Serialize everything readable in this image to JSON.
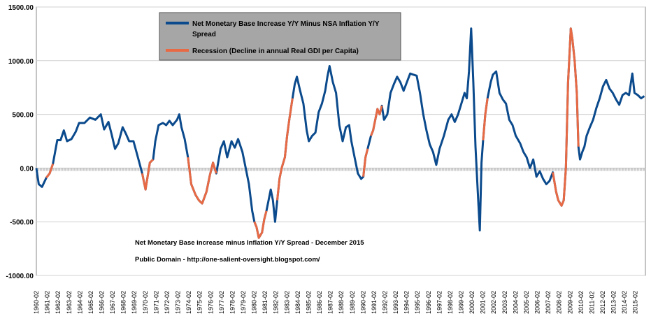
{
  "chart_data": {
    "type": "line",
    "ylim": [
      -1000,
      1500
    ],
    "yticks": [
      "1500.00",
      "1000.00",
      "500.00",
      "0.00",
      "-500.00",
      "-1000.00"
    ],
    "ytick_values": [
      1500,
      1000,
      500,
      0,
      -500,
      -1000
    ],
    "x_start_year": 1960.08,
    "x_end_year": 2016.0,
    "xticks": [
      "1960-02",
      "1961-02",
      "1962-02",
      "1963-02",
      "1964-02",
      "1965-02",
      "1966-02",
      "1967-02",
      "1968-02",
      "1969-02",
      "1970-02",
      "1971-02",
      "1972-02",
      "1973-02",
      "1974-02",
      "1975-02",
      "1976-02",
      "1977-02",
      "1978-02",
      "1979-02",
      "1980-02",
      "1981-02",
      "1982-02",
      "1983-02",
      "1984-02",
      "1985-02",
      "1986-02",
      "1987-02",
      "1988-02",
      "1989-02",
      "1990-02",
      "1991-02",
      "1992-02",
      "1993-02",
      "1994-02",
      "1995-02",
      "1996-02",
      "1997-02",
      "1998-02",
      "1999-02",
      "2000-02",
      "2001-02",
      "2002-02",
      "2003-02",
      "2004-02",
      "2005-02",
      "2006-02",
      "2007-02",
      "2008-02",
      "2009-02",
      "2010-02",
      "2011-02",
      "2012-02",
      "2013-02",
      "2014-02",
      "2015-02"
    ],
    "legend": {
      "series_label_line1": "Net Monetary Base Increase Y/Y Minus NSA Inflation Y/Y",
      "series_label_line2": "Spread",
      "recession_label": "Recession (Decline in annual Real GDI per Capita)",
      "placement": "top-center"
    },
    "series": [
      {
        "name": "Net Monetary Base Increase Y/Y Minus NSA Inflation Y/Y Spread",
        "color": "#0b4a8c",
        "points": [
          [
            1960.08,
            0
          ],
          [
            1960.3,
            -150
          ],
          [
            1960.6,
            -175
          ],
          [
            1961.0,
            -90
          ],
          [
            1961.3,
            -50
          ],
          [
            1961.6,
            40
          ],
          [
            1962.0,
            260
          ],
          [
            1962.3,
            260
          ],
          [
            1962.6,
            350
          ],
          [
            1962.9,
            250
          ],
          [
            1963.3,
            270
          ],
          [
            1963.7,
            340
          ],
          [
            1964.0,
            420
          ],
          [
            1964.5,
            420
          ],
          [
            1965.0,
            470
          ],
          [
            1965.5,
            450
          ],
          [
            1966.0,
            500
          ],
          [
            1966.3,
            360
          ],
          [
            1966.7,
            430
          ],
          [
            1967.0,
            310
          ],
          [
            1967.3,
            180
          ],
          [
            1967.6,
            230
          ],
          [
            1968.0,
            380
          ],
          [
            1968.3,
            320
          ],
          [
            1968.6,
            250
          ],
          [
            1969.0,
            250
          ],
          [
            1969.4,
            100
          ],
          [
            1969.8,
            -50
          ],
          [
            1970.1,
            -200
          ],
          [
            1970.5,
            50
          ],
          [
            1970.8,
            80
          ],
          [
            1971.0,
            250
          ],
          [
            1971.3,
            400
          ],
          [
            1971.7,
            420
          ],
          [
            1972.0,
            400
          ],
          [
            1972.3,
            440
          ],
          [
            1972.6,
            400
          ],
          [
            1973.0,
            450
          ],
          [
            1973.2,
            500
          ],
          [
            1973.4,
            380
          ],
          [
            1973.7,
            270
          ],
          [
            1974.0,
            100
          ],
          [
            1974.3,
            -150
          ],
          [
            1974.7,
            -250
          ],
          [
            1975.0,
            -300
          ],
          [
            1975.3,
            -330
          ],
          [
            1975.7,
            -220
          ],
          [
            1976.0,
            -70
          ],
          [
            1976.3,
            50
          ],
          [
            1976.6,
            -50
          ],
          [
            1977.0,
            180
          ],
          [
            1977.3,
            250
          ],
          [
            1977.6,
            100
          ],
          [
            1978.0,
            250
          ],
          [
            1978.3,
            190
          ],
          [
            1978.6,
            270
          ],
          [
            1979.0,
            150
          ],
          [
            1979.3,
            0
          ],
          [
            1979.6,
            -150
          ],
          [
            1979.9,
            -400
          ],
          [
            1980.1,
            -500
          ],
          [
            1980.3,
            -550
          ],
          [
            1980.5,
            -650
          ],
          [
            1980.8,
            -600
          ],
          [
            1981.0,
            -480
          ],
          [
            1981.2,
            -400
          ],
          [
            1981.4,
            -300
          ],
          [
            1981.6,
            -200
          ],
          [
            1981.8,
            -300
          ],
          [
            1982.0,
            -500
          ],
          [
            1982.2,
            -300
          ],
          [
            1982.4,
            -100
          ],
          [
            1982.6,
            0
          ],
          [
            1982.9,
            100
          ],
          [
            1983.1,
            300
          ],
          [
            1983.3,
            450
          ],
          [
            1983.6,
            650
          ],
          [
            1983.8,
            780
          ],
          [
            1984.0,
            850
          ],
          [
            1984.3,
            720
          ],
          [
            1984.6,
            600
          ],
          [
            1984.9,
            350
          ],
          [
            1985.1,
            250
          ],
          [
            1985.4,
            300
          ],
          [
            1985.7,
            330
          ],
          [
            1986.0,
            520
          ],
          [
            1986.3,
            600
          ],
          [
            1986.6,
            720
          ],
          [
            1986.8,
            850
          ],
          [
            1987.0,
            950
          ],
          [
            1987.3,
            800
          ],
          [
            1987.6,
            700
          ],
          [
            1987.9,
            400
          ],
          [
            1988.2,
            250
          ],
          [
            1988.5,
            380
          ],
          [
            1988.8,
            400
          ],
          [
            1989.0,
            250
          ],
          [
            1989.3,
            100
          ],
          [
            1989.6,
            -50
          ],
          [
            1989.9,
            -100
          ],
          [
            1990.1,
            -80
          ],
          [
            1990.3,
            100
          ],
          [
            1990.5,
            180
          ],
          [
            1990.8,
            300
          ],
          [
            1991.0,
            350
          ],
          [
            1991.2,
            450
          ],
          [
            1991.4,
            550
          ],
          [
            1991.6,
            500
          ],
          [
            1991.8,
            580
          ],
          [
            1992.0,
            450
          ],
          [
            1992.3,
            500
          ],
          [
            1992.6,
            700
          ],
          [
            1992.9,
            780
          ],
          [
            1993.2,
            850
          ],
          [
            1993.5,
            800
          ],
          [
            1993.8,
            720
          ],
          [
            1994.1,
            800
          ],
          [
            1994.4,
            880
          ],
          [
            1994.7,
            870
          ],
          [
            1995.0,
            860
          ],
          [
            1995.3,
            700
          ],
          [
            1995.6,
            500
          ],
          [
            1995.9,
            350
          ],
          [
            1996.2,
            220
          ],
          [
            1996.5,
            150
          ],
          [
            1996.8,
            30
          ],
          [
            1997.1,
            180
          ],
          [
            1997.5,
            300
          ],
          [
            1997.9,
            450
          ],
          [
            1998.2,
            500
          ],
          [
            1998.5,
            430
          ],
          [
            1998.8,
            500
          ],
          [
            1999.1,
            600
          ],
          [
            1999.4,
            700
          ],
          [
            1999.6,
            650
          ],
          [
            1999.8,
            900
          ],
          [
            2000.0,
            1300
          ],
          [
            2000.2,
            800
          ],
          [
            2000.4,
            200
          ],
          [
            2000.6,
            -200
          ],
          [
            2000.8,
            -580
          ],
          [
            2000.95,
            50
          ],
          [
            2001.1,
            260
          ],
          [
            2001.3,
            500
          ],
          [
            2001.5,
            650
          ],
          [
            2001.8,
            800
          ],
          [
            2002.0,
            870
          ],
          [
            2002.3,
            900
          ],
          [
            2002.6,
            700
          ],
          [
            2002.9,
            640
          ],
          [
            2003.2,
            600
          ],
          [
            2003.5,
            450
          ],
          [
            2003.8,
            400
          ],
          [
            2004.1,
            300
          ],
          [
            2004.5,
            230
          ],
          [
            2004.8,
            150
          ],
          [
            2005.1,
            100
          ],
          [
            2005.4,
            0
          ],
          [
            2005.7,
            80
          ],
          [
            2006.0,
            -80
          ],
          [
            2006.3,
            -30
          ],
          [
            2006.6,
            -100
          ],
          [
            2006.9,
            -150
          ],
          [
            2007.2,
            -120
          ],
          [
            2007.5,
            -40
          ],
          [
            2007.8,
            -220
          ],
          [
            2008.0,
            -300
          ],
          [
            2008.3,
            -350
          ],
          [
            2008.5,
            -300
          ],
          [
            2008.7,
            0
          ],
          [
            2008.9,
            800
          ],
          [
            2009.0,
            1000
          ],
          [
            2009.15,
            1300
          ],
          [
            2009.3,
            1200
          ],
          [
            2009.5,
            1000
          ],
          [
            2009.7,
            700
          ],
          [
            2009.85,
            200
          ],
          [
            2010.0,
            80
          ],
          [
            2010.2,
            150
          ],
          [
            2010.4,
            200
          ],
          [
            2010.6,
            300
          ],
          [
            2010.9,
            380
          ],
          [
            2011.2,
            450
          ],
          [
            2011.5,
            560
          ],
          [
            2011.8,
            650
          ],
          [
            2012.1,
            760
          ],
          [
            2012.4,
            820
          ],
          [
            2012.7,
            740
          ],
          [
            2013.0,
            700
          ],
          [
            2013.3,
            640
          ],
          [
            2013.6,
            590
          ],
          [
            2013.9,
            680
          ],
          [
            2014.2,
            700
          ],
          [
            2014.5,
            680
          ],
          [
            2014.8,
            880
          ],
          [
            2015.0,
            700
          ],
          [
            2015.3,
            680
          ],
          [
            2015.6,
            650
          ],
          [
            2015.9,
            670
          ]
        ]
      },
      {
        "name": "Recession (Decline in annual Real GDI per Capita)",
        "color": "#e76a45",
        "segments": [
          [
            [
              1961.0,
              -90
            ],
            [
              1961.3,
              -50
            ],
            [
              1961.6,
              40
            ]
          ],
          [
            [
              1969.8,
              -50
            ],
            [
              1970.1,
              -200
            ],
            [
              1970.5,
              50
            ],
            [
              1970.8,
              80
            ]
          ],
          [
            [
              1974.0,
              100
            ],
            [
              1974.3,
              -150
            ],
            [
              1974.7,
              -250
            ],
            [
              1975.0,
              -300
            ],
            [
              1975.3,
              -330
            ],
            [
              1975.7,
              -220
            ],
            [
              1976.0,
              -70
            ],
            [
              1976.3,
              50
            ],
            [
              1976.6,
              -50
            ]
          ],
          [
            [
              1980.1,
              -500
            ],
            [
              1980.3,
              -550
            ],
            [
              1980.5,
              -650
            ],
            [
              1980.8,
              -600
            ],
            [
              1981.0,
              -480
            ],
            [
              1981.2,
              -400
            ]
          ],
          [
            [
              1982.2,
              -300
            ],
            [
              1982.4,
              -100
            ],
            [
              1982.6,
              0
            ],
            [
              1982.9,
              100
            ],
            [
              1983.1,
              300
            ],
            [
              1983.3,
              450
            ],
            [
              1983.6,
              650
            ]
          ],
          [
            [
              1990.1,
              -80
            ],
            [
              1990.3,
              100
            ],
            [
              1990.5,
              180
            ]
          ],
          [
            [
              1990.8,
              300
            ],
            [
              1991.0,
              350
            ],
            [
              1991.2,
              450
            ],
            [
              1991.4,
              550
            ],
            [
              1991.6,
              500
            ],
            [
              1991.8,
              580
            ]
          ],
          [
            [
              2001.1,
              260
            ],
            [
              2001.3,
              500
            ],
            [
              2001.5,
              650
            ]
          ],
          [
            [
              2007.5,
              -40
            ],
            [
              2007.8,
              -220
            ],
            [
              2008.0,
              -300
            ],
            [
              2008.3,
              -350
            ],
            [
              2008.5,
              -300
            ],
            [
              2008.7,
              0
            ],
            [
              2008.9,
              800
            ],
            [
              2009.0,
              1000
            ],
            [
              2009.15,
              1300
            ],
            [
              2009.3,
              1200
            ],
            [
              2009.5,
              1000
            ],
            [
              2009.7,
              700
            ],
            [
              2009.85,
              200
            ]
          ]
        ]
      }
    ]
  },
  "annotations": {
    "title_line": "Net Monetary Base increase minus Inflation Y/Y Spread - December 2015",
    "credit_line": "Public Domain - http://one-salient-oversight.blogspot.com/"
  }
}
